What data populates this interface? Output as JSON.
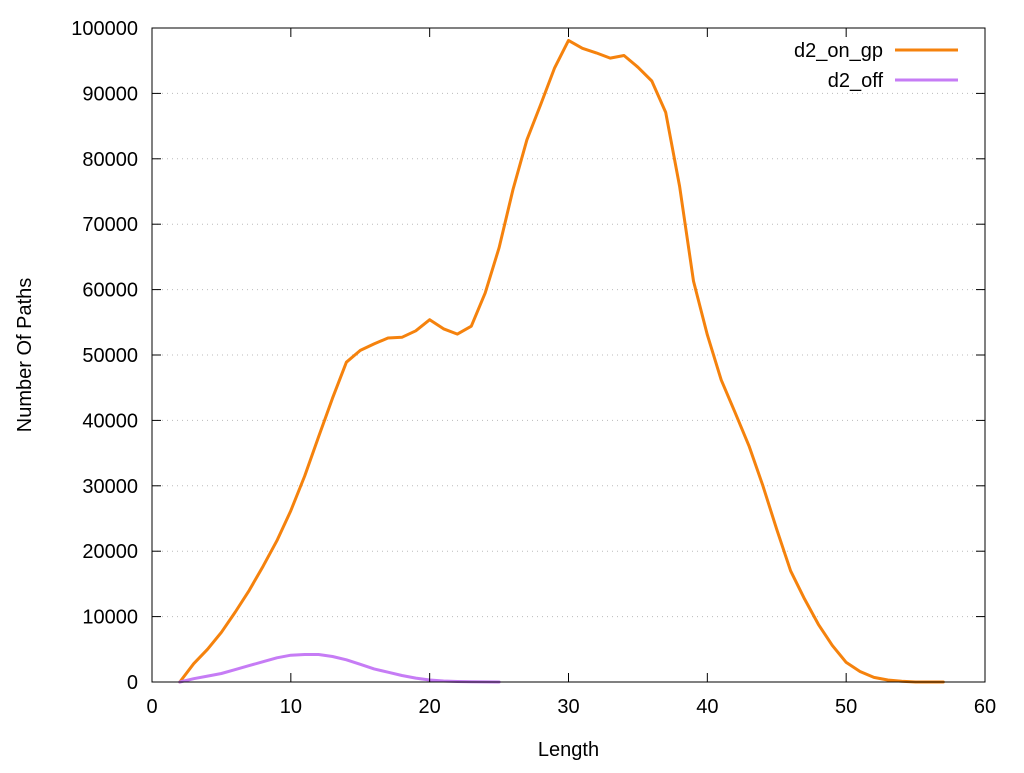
{
  "chart_data": {
    "type": "line",
    "title": "",
    "xlabel": "Length",
    "ylabel": "Number Of Paths",
    "xlim": [
      0,
      60
    ],
    "ylim": [
      0,
      100000
    ],
    "x_ticks": [
      0,
      10,
      20,
      30,
      40,
      50,
      60
    ],
    "y_ticks": [
      0,
      10000,
      20000,
      30000,
      40000,
      50000,
      60000,
      70000,
      80000,
      90000,
      100000
    ],
    "grid": {
      "horizontal": true,
      "vertical": false,
      "style": "dotted"
    },
    "legend": {
      "position": "top-right"
    },
    "series": [
      {
        "name": "d2_on_gp",
        "color": "#f5820d",
        "x": [
          2,
          3,
          4,
          5,
          6,
          7,
          8,
          9,
          10,
          11,
          12,
          13,
          14,
          15,
          16,
          17,
          18,
          19,
          20,
          21,
          22,
          23,
          24,
          25,
          26,
          27,
          28,
          29,
          30,
          31,
          32,
          33,
          34,
          35,
          36,
          37,
          38,
          39,
          40,
          41,
          42,
          43,
          44,
          45,
          46,
          47,
          48,
          49,
          50,
          51,
          52,
          53,
          54,
          55,
          56,
          57
        ],
        "y": [
          0,
          2800,
          5000,
          7600,
          10700,
          14000,
          17700,
          21600,
          26200,
          31500,
          37500,
          43400,
          48900,
          50700,
          51700,
          52600,
          52700,
          53700,
          55400,
          54000,
          53200,
          54400,
          59500,
          66400,
          75300,
          82900,
          88300,
          93900,
          98100,
          96900,
          96200,
          95400,
          95800,
          94000,
          91900,
          87100,
          75800,
          61300,
          53100,
          46200,
          41200,
          36100,
          30000,
          23300,
          17000,
          12700,
          8800,
          5600,
          3000,
          1600,
          700,
          300,
          100,
          0,
          0,
          0
        ]
      },
      {
        "name": "d2_off",
        "color": "#c67cf5",
        "x": [
          2,
          3,
          4,
          5,
          6,
          7,
          8,
          9,
          10,
          11,
          12,
          13,
          14,
          15,
          16,
          17,
          18,
          19,
          20,
          21,
          22,
          23,
          24,
          25
        ],
        "y": [
          0,
          500,
          900,
          1300,
          1900,
          2500,
          3100,
          3700,
          4100,
          4200,
          4200,
          3900,
          3400,
          2700,
          2000,
          1500,
          1000,
          600,
          300,
          150,
          80,
          30,
          10,
          0
        ]
      }
    ]
  }
}
